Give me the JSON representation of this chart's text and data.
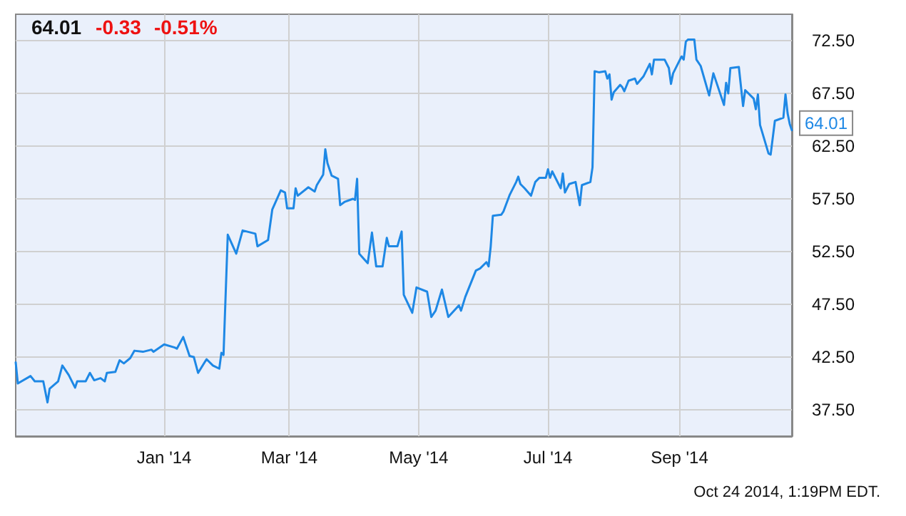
{
  "chart_data": {
    "type": "line",
    "title": "64.01",
    "annotations": [
      "-0.33",
      "-0.51%",
      "Oct 24 2014, 1:19PM EDT."
    ],
    "x": [
      "2013-10-23",
      "2013-10-24",
      "2013-10-30",
      "2013-11-01",
      "2013-11-05",
      "2013-11-07",
      "2013-11-08",
      "2013-11-12",
      "2013-11-14",
      "2013-11-17",
      "2013-11-20",
      "2013-11-21",
      "2013-11-25",
      "2013-11-27",
      "2013-11-29",
      "2013-12-02",
      "2013-12-04",
      "2013-12-05",
      "2013-12-09",
      "2013-12-11",
      "2013-12-13",
      "2013-12-16",
      "2013-12-18",
      "2013-12-22",
      "2013-12-26",
      "2013-12-27",
      "2014-01-01",
      "2014-01-06",
      "2014-01-07",
      "2014-01-10",
      "2014-01-13",
      "2014-01-15",
      "2014-01-17",
      "2014-01-21",
      "2014-01-24",
      "2014-01-27",
      "2014-01-28",
      "2014-01-29",
      "2014-01-31",
      "2014-02-04",
      "2014-02-07",
      "2014-02-13",
      "2014-02-14",
      "2014-02-19",
      "2014-02-21",
      "2014-02-25",
      "2014-02-27",
      "2014-02-28",
      "2014-03-03",
      "2014-03-04",
      "2014-03-05",
      "2014-03-10",
      "2014-03-13",
      "2014-03-14",
      "2014-03-17",
      "2014-03-18",
      "2014-03-19",
      "2014-03-21",
      "2014-03-24",
      "2014-03-25",
      "2014-03-27",
      "2014-03-31",
      "2014-04-01",
      "2014-04-02",
      "2014-04-03",
      "2014-04-07",
      "2014-04-09",
      "2014-04-11",
      "2014-04-14",
      "2014-04-16",
      "2014-04-17",
      "2014-04-21",
      "2014-04-23",
      "2014-04-24",
      "2014-04-28",
      "2014-04-30",
      "2014-05-05",
      "2014-05-07",
      "2014-05-09",
      "2014-05-12",
      "2014-05-15",
      "2014-05-20",
      "2014-05-21",
      "2014-05-23",
      "2014-05-28",
      "2014-05-30",
      "2014-06-02",
      "2014-06-03",
      "2014-06-04",
      "2014-06-05",
      "2014-06-09",
      "2014-06-10",
      "2014-06-13",
      "2014-06-16",
      "2014-06-17",
      "2014-06-18",
      "2014-06-20",
      "2014-06-23",
      "2014-06-25",
      "2014-06-27",
      "2014-06-30",
      "2014-07-01",
      "2014-07-02",
      "2014-07-03",
      "2014-07-07",
      "2014-07-08",
      "2014-07-09",
      "2014-07-11",
      "2014-07-14",
      "2014-07-16",
      "2014-07-17",
      "2014-07-21",
      "2014-07-22",
      "2014-07-23",
      "2014-07-25",
      "2014-07-28",
      "2014-07-29",
      "2014-07-30",
      "2014-07-31",
      "2014-08-01",
      "2014-08-04",
      "2014-08-05",
      "2014-08-06",
      "2014-08-08",
      "2014-08-11",
      "2014-08-12",
      "2014-08-15",
      "2014-08-18",
      "2014-08-19",
      "2014-08-20",
      "2014-08-25",
      "2014-08-27",
      "2014-08-28",
      "2014-08-29",
      "2014-09-02",
      "2014-09-03",
      "2014-09-04",
      "2014-09-05",
      "2014-09-08",
      "2014-09-09",
      "2014-09-11",
      "2014-09-15",
      "2014-09-17",
      "2014-09-22",
      "2014-09-23",
      "2014-09-24",
      "2014-09-25",
      "2014-09-29",
      "2014-10-01",
      "2014-10-02",
      "2014-10-06",
      "2014-10-07",
      "2014-10-08",
      "2014-10-09",
      "2014-10-13",
      "2014-10-14",
      "2014-10-16",
      "2014-10-20",
      "2014-10-21",
      "2014-10-22",
      "2014-10-23",
      "2014-10-24"
    ],
    "series": [
      {
        "color": "#1e88e5",
        "values": [
          42.0,
          40.0,
          40.7,
          40.2,
          40.2,
          38.2,
          39.5,
          40.2,
          41.7,
          40.8,
          39.6,
          40.2,
          40.2,
          41.0,
          40.3,
          40.5,
          40.2,
          41.0,
          41.1,
          42.2,
          41.9,
          42.4,
          43.1,
          43.0,
          43.2,
          43.0,
          43.7,
          43.4,
          43.3,
          44.4,
          42.6,
          42.5,
          41.0,
          42.3,
          41.7,
          41.4,
          42.9,
          42.7,
          54.1,
          52.3,
          54.5,
          54.2,
          53.0,
          53.6,
          56.5,
          58.3,
          58.1,
          56.6,
          56.6,
          58.5,
          57.8,
          58.6,
          58.2,
          58.8,
          59.8,
          62.2,
          60.9,
          59.7,
          59.4,
          56.9,
          57.2,
          57.5,
          57.4,
          59.4,
          52.3,
          51.4,
          54.3,
          51.1,
          51.1,
          53.8,
          53.0,
          53.0,
          54.4,
          48.4,
          46.7,
          49.1,
          48.7,
          46.3,
          46.9,
          48.9,
          46.3,
          47.4,
          46.9,
          48.2,
          50.7,
          50.9,
          51.5,
          51.1,
          53.0,
          55.9,
          56.0,
          56.3,
          57.9,
          59.1,
          59.6,
          58.9,
          58.5,
          57.8,
          59.1,
          59.5,
          59.5,
          60.3,
          59.5,
          60.1,
          58.5,
          59.9,
          58.1,
          58.9,
          59.1,
          56.9,
          58.8,
          59.1,
          60.5,
          69.6,
          69.5,
          69.6,
          68.9,
          69.3,
          66.9,
          67.6,
          68.3,
          68.1,
          67.7,
          68.7,
          68.9,
          68.4,
          69.1,
          70.3,
          69.3,
          70.7,
          70.7,
          69.9,
          68.4,
          69.4,
          71.0,
          70.7,
          72.4,
          72.6,
          72.6,
          70.7,
          70.1,
          67.3,
          69.4,
          66.4,
          68.5,
          67.5,
          69.9,
          70.0,
          66.3,
          67.8,
          67.0,
          66.0,
          67.4,
          64.5,
          61.8,
          61.7,
          64.9,
          65.2,
          67.4,
          65.6,
          64.6,
          64.01
        ],
        "value_labels": [
          null,
          null,
          null,
          null,
          null,
          null,
          null,
          null,
          null,
          null,
          null,
          null,
          null,
          null,
          null,
          null,
          null,
          null,
          null,
          null,
          null,
          null,
          null,
          null,
          null,
          null,
          null,
          null,
          null,
          null,
          null,
          null,
          null,
          null,
          null,
          null,
          null,
          null,
          null,
          null,
          null,
          null,
          null,
          null,
          null,
          null,
          null,
          null,
          null,
          null,
          null,
          null,
          null,
          null,
          null,
          null,
          null,
          null,
          null,
          null,
          null,
          null,
          null,
          null,
          null,
          null,
          null,
          null,
          null,
          null,
          null,
          null,
          null,
          null,
          null,
          null,
          null,
          null,
          null,
          null,
          null,
          null,
          null,
          null,
          null,
          null,
          null,
          null,
          null,
          null,
          null,
          null,
          null,
          null,
          null,
          null,
          null,
          null,
          null,
          null,
          null,
          null,
          null,
          null,
          null,
          null,
          null,
          null,
          null,
          null,
          null,
          null,
          null,
          null,
          null,
          null,
          null,
          null,
          null,
          null,
          null,
          null,
          null,
          null,
          null,
          null,
          null,
          null,
          null,
          null,
          null,
          null,
          null,
          null,
          null,
          null,
          null,
          null,
          null,
          null,
          null,
          null,
          null,
          null,
          null,
          null,
          null,
          null,
          null,
          null,
          null,
          null,
          null,
          null,
          null,
          null,
          null,
          null,
          null,
          null,
          null,
          "64.01"
        ]
      }
    ],
    "xlim": [
      "2013-10-23",
      "2014-10-24"
    ],
    "xticks": [
      {
        "value": "2014-01-01",
        "label": "Jan '14"
      },
      {
        "value": "2014-03-01",
        "label": "Mar '14"
      },
      {
        "value": "2014-05-01",
        "label": "May '14"
      },
      {
        "value": "2014-07-01",
        "label": "Jul '14"
      },
      {
        "value": "2014-09-01",
        "label": "Sep '14"
      }
    ],
    "ylim": [
      35,
      75
    ],
    "yticks": [
      {
        "value": 37.5,
        "label": "37.50"
      },
      {
        "value": 42.5,
        "label": "42.50"
      },
      {
        "value": 47.5,
        "label": "47.50"
      },
      {
        "value": 52.5,
        "label": "52.50"
      },
      {
        "value": 57.5,
        "label": "57.50"
      },
      {
        "value": 62.5,
        "label": "62.50"
      },
      {
        "value": 67.5,
        "label": "67.50"
      },
      {
        "value": 72.5,
        "label": "72.50"
      }
    ],
    "grid": true,
    "marker": "none",
    "line_style": "solid"
  }
}
